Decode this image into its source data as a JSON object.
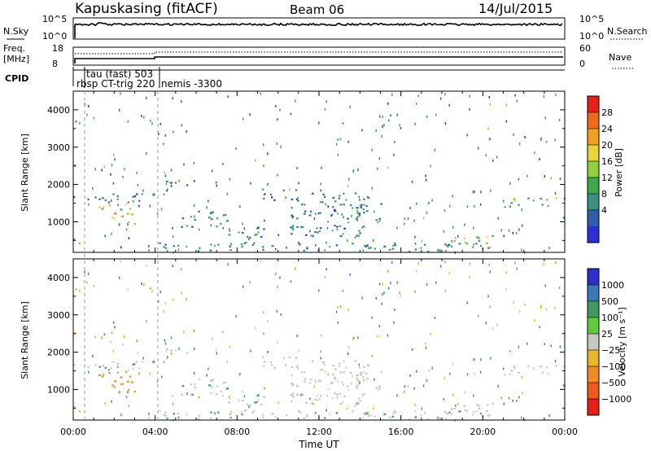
{
  "header": {
    "station": "Kapuskasing (fitACF)",
    "beam": "Beam 06",
    "date": "14/Jul/2015"
  },
  "strips": {
    "nsky_label": "N.Sky",
    "nsearch_label": "N.Search",
    "nsky_ticks": [
      "10^5",
      "10^0"
    ],
    "nsearch_ticks": [
      "10^5",
      "10^0"
    ],
    "freq_label": "Freq.",
    "freq_unit": "[MHz]",
    "freq_ticks": [
      "18",
      "8"
    ],
    "nave_label": "Nave",
    "nave_ticks": [
      "60",
      "0"
    ],
    "cpid_label": "CPID",
    "cpid_entries": [
      "tau (fast) 503",
      "rbsp CT-trig 220",
      "nemis -3300"
    ]
  },
  "power_panel": {
    "ylabel": "Slant Range [km]",
    "colorbar_label": "Power [dB]",
    "colorbar_ticks": [
      "28",
      "24",
      "20",
      "16",
      "12",
      "8",
      "4"
    ],
    "colorbar_colors": [
      "#e8201a",
      "#f06a1e",
      "#f2a020",
      "#e9d23a",
      "#8fd03c",
      "#3da848",
      "#3a8f7e",
      "#2f5fa8",
      "#2b2fd8"
    ]
  },
  "velocity_panel": {
    "ylabel": "Slant Range [km]",
    "colorbar_label": "Velocity [m s⁻¹]",
    "colorbar_ticks": [
      "1000",
      "500",
      "100",
      "25",
      "−25",
      "−100",
      "−500",
      "−1000"
    ],
    "colorbar_colors": [
      "#2a30c8",
      "#3a78b8",
      "#3f9a62",
      "#5ecb3a",
      "#c8c8c0",
      "#e8b82a",
      "#f08a22",
      "#ee5a1c",
      "#e81e18"
    ]
  },
  "xaxis": {
    "label": "Time UT",
    "ticks": [
      "00:00",
      "04:00",
      "08:00",
      "12:00",
      "16:00",
      "20:00",
      "00:00"
    ]
  },
  "chart_data": {
    "type": "heatmap",
    "x_unit": "hours UT",
    "xlim": [
      0,
      24
    ],
    "ylim": [
      180,
      4500
    ],
    "yticks": [
      1000,
      2000,
      3000,
      4000
    ],
    "clusters": [
      {
        "x0": 0.0,
        "x1": 0.5,
        "y0": 380,
        "y1": 560,
        "power": 12,
        "velocity": -80
      },
      {
        "x0": 0.0,
        "x1": 4.2,
        "y0": 1500,
        "y1": 1800,
        "power": 6,
        "velocity": 10
      },
      {
        "x0": 1.0,
        "x1": 2.8,
        "y0": 1200,
        "y1": 1500,
        "power": 14,
        "velocity": -150
      },
      {
        "x0": 1.5,
        "x1": 3.1,
        "y0": 900,
        "y1": 1250,
        "power": 20,
        "velocity": -300
      },
      {
        "x0": 4.5,
        "x1": 5.6,
        "y0": 1800,
        "y1": 2200,
        "power": 6,
        "velocity": 10
      },
      {
        "x0": 4.8,
        "x1": 7.5,
        "y0": 850,
        "y1": 1300,
        "power": 6,
        "velocity": 10
      },
      {
        "x0": 4.0,
        "x1": 20.5,
        "y0": 200,
        "y1": 450,
        "power": 8,
        "velocity": 15
      },
      {
        "x0": 7.5,
        "x1": 9.5,
        "y0": 400,
        "y1": 900,
        "power": 8,
        "velocity": 10
      },
      {
        "x0": 9.0,
        "x1": 11.0,
        "y0": 1600,
        "y1": 2000,
        "power": 6,
        "velocity": 5
      },
      {
        "x0": 10.5,
        "x1": 14.5,
        "y0": 600,
        "y1": 1800,
        "power": 6,
        "velocity": 5
      },
      {
        "x0": 13.0,
        "x1": 15.0,
        "y0": 1000,
        "y1": 1500,
        "power": 6,
        "velocity": 5
      },
      {
        "x0": 18.5,
        "x1": 20.5,
        "y0": 300,
        "y1": 650,
        "power": 16,
        "velocity": 5
      },
      {
        "x0": 21.0,
        "x1": 24.0,
        "y0": 1400,
        "y1": 1700,
        "power": 14,
        "velocity": 5
      }
    ]
  }
}
